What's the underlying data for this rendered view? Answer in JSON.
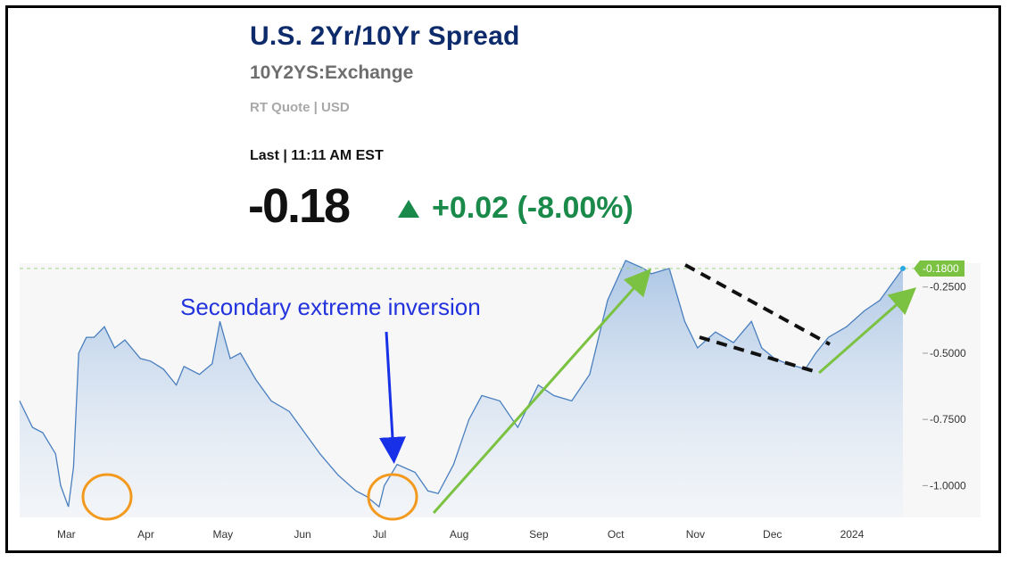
{
  "header": {
    "title": "U.S. 2Yr/10Yr Spread",
    "symbol": "10Y2YS:Exchange",
    "quote_type": "RT Quote | USD",
    "last_label": "Last | 11:11 AM EST",
    "price": "-0.18",
    "change": "+0.02 (-8.00%)",
    "change_direction": "up",
    "change_color": "#1a8a4a"
  },
  "annotations": {
    "inversion_label": "Secondary extreme inversion",
    "last_value_badge": "-0.1800"
  },
  "chart_data": {
    "type": "area",
    "title": "",
    "xlabel": "",
    "ylabel": "",
    "x_ticks": [
      "Mar",
      "Apr",
      "May",
      "Jun",
      "Jul",
      "Aug",
      "Sep",
      "Oct",
      "Nov",
      "Dec",
      "2024"
    ],
    "y_ticks": [
      -0.25,
      -0.5,
      -0.75,
      -1.0
    ],
    "y_tick_labels": [
      "-0.2500",
      "-0.5000",
      "-0.7500",
      "-1.0000"
    ],
    "ylim": [
      -1.12,
      -0.16
    ],
    "grid": false,
    "x_axis": "2023-02-15 to 2024-01-25",
    "series": [
      {
        "x": [
          "2023-02-15",
          "2023-02-20",
          "2023-02-24",
          "2023-03-01",
          "2023-03-03",
          "2023-03-06",
          "2023-03-08",
          "2023-03-10",
          "2023-03-13",
          "2023-03-16",
          "2023-03-20",
          "2023-03-24",
          "2023-03-28",
          "2023-04-03",
          "2023-04-07",
          "2023-04-12",
          "2023-04-17",
          "2023-04-20",
          "2023-04-26",
          "2023-05-01",
          "2023-05-04",
          "2023-05-08",
          "2023-05-12",
          "2023-05-18",
          "2023-05-24",
          "2023-05-31",
          "2023-06-06",
          "2023-06-12",
          "2023-06-19",
          "2023-06-26",
          "2023-06-30",
          "2023-07-05",
          "2023-07-07",
          "2023-07-12",
          "2023-07-19",
          "2023-07-24",
          "2023-07-28",
          "2023-08-03",
          "2023-08-09",
          "2023-08-14",
          "2023-08-21",
          "2023-08-28",
          "2023-09-05",
          "2023-09-11",
          "2023-09-18",
          "2023-09-25",
          "2023-10-02",
          "2023-10-09",
          "2023-10-16",
          "2023-10-19",
          "2023-10-26",
          "2023-11-01",
          "2023-11-06",
          "2023-11-13",
          "2023-11-20",
          "2023-11-27",
          "2023-12-01",
          "2023-12-06",
          "2023-12-11",
          "2023-12-18",
          "2023-12-22",
          "2023-12-27",
          "2024-01-03",
          "2024-01-10",
          "2024-01-16",
          "2024-01-22",
          "2024-01-25"
        ],
        "values": [
          -0.68,
          -0.78,
          -0.8,
          -0.88,
          -1.0,
          -1.08,
          -0.93,
          -0.5,
          -0.44,
          -0.44,
          -0.4,
          -0.48,
          -0.45,
          -0.52,
          -0.53,
          -0.56,
          -0.62,
          -0.55,
          -0.58,
          -0.54,
          -0.38,
          -0.52,
          -0.5,
          -0.6,
          -0.68,
          -0.72,
          -0.8,
          -0.88,
          -0.96,
          -1.02,
          -1.04,
          -1.08,
          -1.0,
          -0.92,
          -0.95,
          -1.02,
          -1.03,
          -0.92,
          -0.75,
          -0.66,
          -0.68,
          -0.78,
          -0.62,
          -0.66,
          -0.68,
          -0.58,
          -0.3,
          -0.15,
          -0.18,
          -0.2,
          -0.18,
          -0.38,
          -0.48,
          -0.42,
          -0.46,
          -0.38,
          -0.48,
          -0.52,
          -0.54,
          -0.56,
          -0.5,
          -0.44,
          -0.4,
          -0.34,
          -0.3,
          -0.22,
          -0.18
        ]
      }
    ]
  }
}
